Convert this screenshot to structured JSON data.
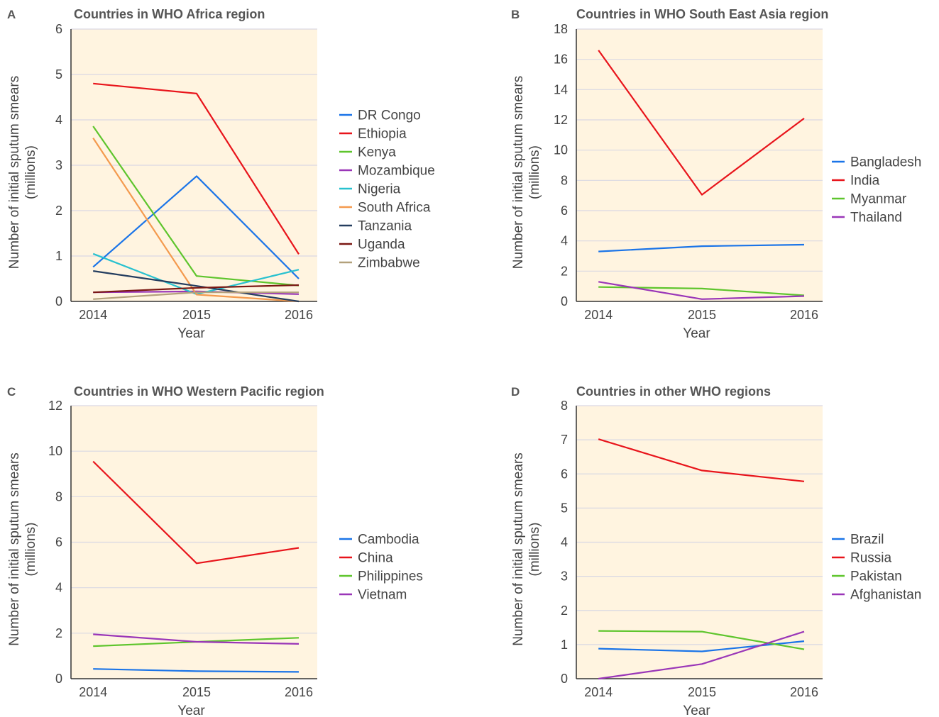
{
  "chart_data": [
    {
      "panel": "A",
      "type": "line",
      "title": "Countries in WHO Africa region",
      "xlabel": "Year",
      "ylabel": "Number of initial sputum smears\n(millions)",
      "x": [
        "2014",
        "2015",
        "2016"
      ],
      "ylim": [
        0,
        6
      ],
      "yticks": [
        0,
        1,
        2,
        3,
        4,
        5,
        6
      ],
      "grid": true,
      "legend": "right",
      "series": [
        {
          "name": "DR Congo",
          "color": "#1a74e8",
          "values": [
            0.76,
            2.76,
            0.5
          ]
        },
        {
          "name": "Ethiopia",
          "color": "#e8141b",
          "values": [
            4.8,
            4.58,
            1.04
          ]
        },
        {
          "name": "Kenya",
          "color": "#5ec52d",
          "values": [
            3.86,
            0.56,
            0.35
          ]
        },
        {
          "name": "Mozambique",
          "color": "#9a36b8",
          "values": [
            0.2,
            0.22,
            0.16
          ]
        },
        {
          "name": "Nigeria",
          "color": "#28c1cf",
          "values": [
            1.05,
            0.16,
            0.7
          ]
        },
        {
          "name": "South Africa",
          "color": "#f49a4e",
          "values": [
            3.6,
            0.15,
            0.0
          ]
        },
        {
          "name": "Tanzania",
          "color": "#243d5f",
          "values": [
            0.67,
            0.34,
            0.0
          ]
        },
        {
          "name": "Uganda",
          "color": "#7a1712",
          "values": [
            0.2,
            0.3,
            0.36
          ]
        },
        {
          "name": "Zimbabwe",
          "color": "#b3a17b",
          "values": [
            0.05,
            0.2,
            0.2
          ]
        }
      ]
    },
    {
      "panel": "B",
      "type": "line",
      "title": "Countries in WHO South East Asia region",
      "xlabel": "Year",
      "ylabel": "Number of initial sputum smears\n(millions)",
      "x": [
        "2014",
        "2015",
        "2016"
      ],
      "ylim": [
        0,
        18
      ],
      "yticks": [
        0,
        2,
        4,
        6,
        8,
        10,
        12,
        14,
        16,
        18
      ],
      "grid": true,
      "legend": "right",
      "series": [
        {
          "name": "Bangladesh",
          "color": "#1a74e8",
          "values": [
            3.3,
            3.65,
            3.75
          ]
        },
        {
          "name": "India",
          "color": "#e8141b",
          "values": [
            16.6,
            7.05,
            12.1
          ]
        },
        {
          "name": "Myanmar",
          "color": "#5ec52d",
          "values": [
            0.95,
            0.85,
            0.4
          ]
        },
        {
          "name": "Thailand",
          "color": "#9a36b8",
          "values": [
            1.3,
            0.15,
            0.35
          ]
        }
      ]
    },
    {
      "panel": "C",
      "type": "line",
      "title": "Countries in WHO Western Pacific region",
      "xlabel": "Year",
      "ylabel": "Number of initial sputum smears\n(millions)",
      "x": [
        "2014",
        "2015",
        "2016"
      ],
      "ylim": [
        0,
        12
      ],
      "yticks": [
        0,
        2,
        4,
        6,
        8,
        10,
        12
      ],
      "grid": true,
      "legend": "right",
      "series": [
        {
          "name": "Cambodia",
          "color": "#1a74e8",
          "values": [
            0.43,
            0.33,
            0.3
          ]
        },
        {
          "name": "China",
          "color": "#e8141b",
          "values": [
            9.55,
            5.07,
            5.75
          ]
        },
        {
          "name": "Philippines",
          "color": "#5ec52d",
          "values": [
            1.43,
            1.62,
            1.8
          ]
        },
        {
          "name": "Vietnam",
          "color": "#9a36b8",
          "values": [
            1.95,
            1.62,
            1.53
          ]
        }
      ]
    },
    {
      "panel": "D",
      "type": "line",
      "title": "Countries in other WHO regions",
      "xlabel": "Year",
      "ylabel": "Number of initial sputum smears\n(millions)",
      "x": [
        "2014",
        "2015",
        "2016"
      ],
      "ylim": [
        0,
        8
      ],
      "yticks": [
        0,
        1,
        2,
        3,
        4,
        5,
        6,
        7,
        8
      ],
      "grid": true,
      "legend": "right",
      "series": [
        {
          "name": "Brazil",
          "color": "#1a74e8",
          "values": [
            0.88,
            0.8,
            1.1
          ]
        },
        {
          "name": "Russia",
          "color": "#e8141b",
          "values": [
            7.02,
            6.1,
            5.78
          ]
        },
        {
          "name": "Pakistan",
          "color": "#5ec52d",
          "values": [
            1.4,
            1.38,
            0.86
          ]
        },
        {
          "name": "Afghanistan",
          "color": "#9a36b8",
          "values": [
            0.0,
            0.43,
            1.38
          ]
        }
      ]
    }
  ],
  "style": {
    "plot_background": "#fff4e0",
    "gridline_color": "#d9d8e3",
    "axis_color": "#333333"
  }
}
